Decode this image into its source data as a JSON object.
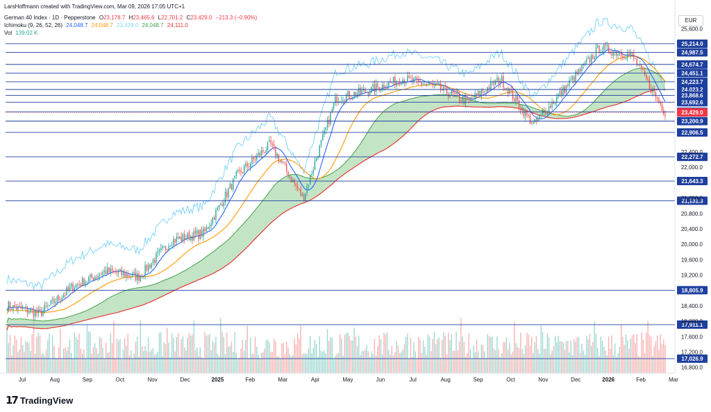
{
  "header": {
    "credit": "LarsHoffmann created with TradingView.com, Mar 09, 2026 17:05 UTC+1",
    "instrument": "German 40 Index · 1D · Pepperstone",
    "ohlc": {
      "o_label": "O",
      "o": "23,178.7",
      "h_label": "H",
      "h": "23,465.6",
      "l_label": "L",
      "l": "22,701.2",
      "c_label": "C",
      "c": "23,429.0",
      "change": "−213.3 (−0.90%)"
    },
    "ichimoku": {
      "label": "Ichimoku (9, 26, 52, 26)",
      "v1": "24,048.7",
      "v2": "24,048.7",
      "v3": "23,429.0",
      "v4": "24,048.7",
      "v5": "24,111.0"
    },
    "volume": {
      "label": "Vol",
      "value": "139.02 K"
    }
  },
  "currency": "EUR",
  "footer_brand": "TradingView",
  "colors": {
    "up": "#26a69a",
    "down": "#ef5350",
    "tenkan": "#2962ff",
    "kijun": "#ff9800",
    "chikou": "#81d4fa",
    "span_a": "#43a047",
    "span_b": "#e53935",
    "kumo_bull": "#a5d6a7",
    "kumo_bear": "#ef9a9a",
    "hline": "#1e3f9e",
    "price_tag": "#f23645"
  },
  "chart_data": {
    "type": "candlestick",
    "title": "German 40 Index · 1D · Pepperstone",
    "x_axis_labels": [
      "Jul",
      "Aug",
      "Sep",
      "Oct",
      "Nov",
      "Dec",
      "2025",
      "Feb",
      "Mar",
      "Apr",
      "May",
      "Jun",
      "Jul",
      "Aug",
      "Sep",
      "Oct",
      "Nov",
      "Dec",
      "2026",
      "Feb",
      "Mar"
    ],
    "y_ticks": [
      "16,800.0",
      "17,200.0",
      "17,600.0",
      "18,000.0",
      "18,400.0",
      "19,200.0",
      "19,600.0",
      "20,000.0",
      "20,400.0",
      "20,800.0",
      "21,200.0",
      "22,000.0",
      "22,400.0",
      "25,600.0"
    ],
    "ylim": [
      16650,
      25700
    ],
    "horizontal_levels": [
      "25,214.0",
      "24,987.5",
      "24,674.7",
      "24,451.1",
      "24,223.7",
      "24,023.2",
      "23,868.6",
      "23,692.6",
      "23,443.3",
      "23,200.9",
      "22,906.5",
      "22,272.7",
      "21,643.3",
      "21,131.3",
      "18,805.9",
      "17,911.1",
      "17,026.9"
    ],
    "last_price": "23,429.0",
    "price_path": {
      "months": [
        "Jul",
        "Aug",
        "Sep",
        "Oct",
        "Nov",
        "Dec",
        "2025",
        "Feb",
        "Mar",
        "Apr",
        "May",
        "Jun",
        "Jul",
        "Aug",
        "Sep",
        "Oct",
        "Nov",
        "Dec",
        "2026",
        "Feb",
        "Mar"
      ],
      "close": [
        18400,
        18200,
        18900,
        19300,
        19150,
        20100,
        20300,
        21800,
        22600,
        21200,
        23800,
        24000,
        24300,
        24100,
        23700,
        24300,
        23100,
        24100,
        25100,
        24900,
        23429
      ]
    },
    "series": [
      {
        "name": "Tenkan-sen",
        "value": "24,048.7"
      },
      {
        "name": "Kijun-sen",
        "value": "24,048.7"
      },
      {
        "name": "Chikou Span",
        "value": "23,429.0"
      },
      {
        "name": "Senkou Span A",
        "value": "24,048.7"
      },
      {
        "name": "Senkou Span B",
        "value": "24,111.0"
      }
    ]
  }
}
